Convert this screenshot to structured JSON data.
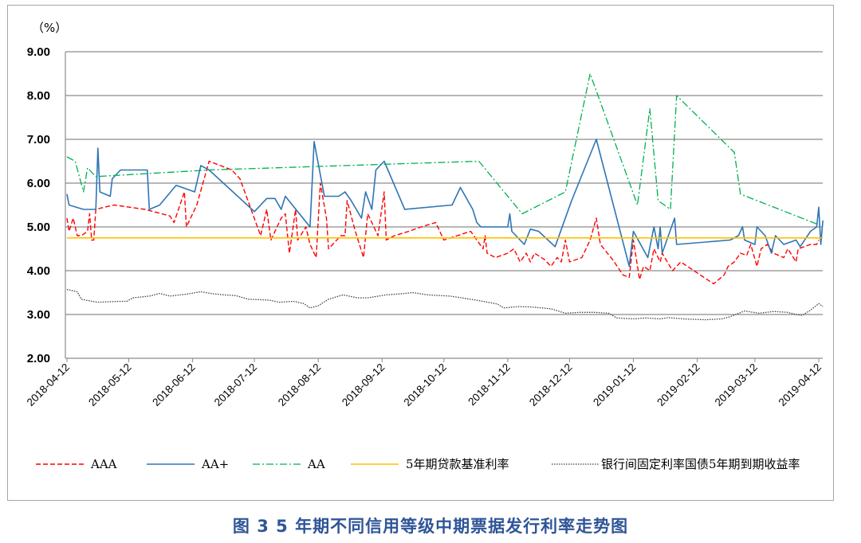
{
  "caption": "图 3  5 年期不同信用等级中期票据发行利率走势图",
  "chart_data": {
    "type": "line",
    "unit_label": "（%）",
    "ylim": [
      2.0,
      9.0
    ],
    "yticks": [
      "2.00",
      "3.00",
      "4.00",
      "5.00",
      "6.00",
      "7.00",
      "8.00",
      "9.00"
    ],
    "xticks": [
      "2018-04-12",
      "2018-05-12",
      "2018-06-12",
      "2018-07-12",
      "2018-08-12",
      "2018-09-12",
      "2018-10-12",
      "2018-11-12",
      "2018-12-12",
      "2019-01-12",
      "2019-02-12",
      "2019-03-12",
      "2019-04-12"
    ],
    "grid": "horizontal",
    "legend_position": "bottom",
    "series": [
      {
        "name": "AAA",
        "color": "#ff0000",
        "style": "dashed",
        "points": [
          [
            "2018-04-12",
            5.2
          ],
          [
            "2018-04-13",
            4.9
          ],
          [
            "2018-04-15",
            5.2
          ],
          [
            "2018-04-17",
            4.8
          ],
          [
            "2018-04-19",
            4.8
          ],
          [
            "2018-04-22",
            4.9
          ],
          [
            "2018-04-23",
            5.3
          ],
          [
            "2018-04-24",
            4.7
          ],
          [
            "2018-04-25",
            4.7
          ],
          [
            "2018-04-26",
            5.4
          ],
          [
            "2018-04-30",
            5.45
          ],
          [
            "2018-05-05",
            5.5
          ],
          [
            "2018-05-20",
            5.4
          ],
          [
            "2018-06-01",
            5.25
          ],
          [
            "2018-06-03",
            5.1
          ],
          [
            "2018-06-08",
            5.8
          ],
          [
            "2018-06-09",
            5.0
          ],
          [
            "2018-06-14",
            5.5
          ],
          [
            "2018-06-20",
            6.5
          ],
          [
            "2018-07-01",
            6.3
          ],
          [
            "2018-07-05",
            6.1
          ],
          [
            "2018-07-15",
            4.8
          ],
          [
            "2018-07-18",
            5.4
          ],
          [
            "2018-07-20",
            4.7
          ],
          [
            "2018-07-25",
            5.2
          ],
          [
            "2018-07-27",
            5.3
          ],
          [
            "2018-07-29",
            4.4
          ],
          [
            "2018-08-01",
            5.4
          ],
          [
            "2018-08-02",
            4.7
          ],
          [
            "2018-08-06",
            5.0
          ],
          [
            "2018-08-08",
            4.6
          ],
          [
            "2018-08-11",
            4.3
          ],
          [
            "2018-08-13",
            6.0
          ],
          [
            "2018-08-16",
            5.2
          ],
          [
            "2018-08-17",
            4.5
          ],
          [
            "2018-08-23",
            4.8
          ],
          [
            "2018-08-25",
            4.8
          ],
          [
            "2018-08-26",
            5.6
          ],
          [
            "2018-08-30",
            4.9
          ],
          [
            "2018-09-03",
            4.3
          ],
          [
            "2018-09-05",
            5.3
          ],
          [
            "2018-09-08",
            5.0
          ],
          [
            "2018-09-10",
            4.8
          ],
          [
            "2018-09-13",
            5.8
          ],
          [
            "2018-09-14",
            4.7
          ],
          [
            "2018-09-18",
            4.8
          ],
          [
            "2018-09-25",
            4.9
          ],
          [
            "2018-10-01",
            5.0
          ],
          [
            "2018-10-08",
            5.1
          ],
          [
            "2018-10-12",
            4.7
          ],
          [
            "2018-10-25",
            4.9
          ],
          [
            "2018-10-31",
            4.5
          ],
          [
            "2018-11-01",
            4.8
          ],
          [
            "2018-11-02",
            4.4
          ],
          [
            "2018-11-06",
            4.3
          ],
          [
            "2018-11-12",
            4.4
          ],
          [
            "2018-11-15",
            4.5
          ],
          [
            "2018-11-18",
            4.2
          ],
          [
            "2018-11-21",
            4.4
          ],
          [
            "2018-11-23",
            4.2
          ],
          [
            "2018-11-25",
            4.4
          ],
          [
            "2018-11-30",
            4.25
          ],
          [
            "2018-12-03",
            4.1
          ],
          [
            "2018-12-06",
            4.3
          ],
          [
            "2018-12-08",
            4.2
          ],
          [
            "2018-12-10",
            4.7
          ],
          [
            "2018-12-12",
            4.2
          ],
          [
            "2018-12-18",
            4.3
          ],
          [
            "2018-12-22",
            4.7
          ],
          [
            "2018-12-25",
            5.2
          ],
          [
            "2018-12-27",
            4.6
          ],
          [
            "2019-01-02",
            4.25
          ],
          [
            "2019-01-07",
            3.9
          ],
          [
            "2019-01-10",
            3.85
          ],
          [
            "2019-01-12",
            4.7
          ],
          [
            "2019-01-15",
            3.8
          ],
          [
            "2019-01-17",
            4.1
          ],
          [
            "2019-01-20",
            4.0
          ],
          [
            "2019-01-22",
            4.5
          ],
          [
            "2019-01-25",
            4.2
          ],
          [
            "2019-01-26",
            4.4
          ],
          [
            "2019-01-31",
            4.0
          ],
          [
            "2019-02-04",
            4.2
          ],
          [
            "2019-02-20",
            3.7
          ],
          [
            "2019-02-25",
            3.9
          ],
          [
            "2019-02-27",
            4.1
          ],
          [
            "2019-03-02",
            4.2
          ],
          [
            "2019-03-05",
            4.4
          ],
          [
            "2019-03-08",
            4.35
          ],
          [
            "2019-03-10",
            4.6
          ],
          [
            "2019-03-13",
            4.1
          ],
          [
            "2019-03-15",
            4.5
          ],
          [
            "2019-03-18",
            4.6
          ],
          [
            "2019-03-21",
            4.4
          ],
          [
            "2019-03-26",
            4.3
          ],
          [
            "2019-03-28",
            4.5
          ],
          [
            "2019-04-01",
            4.2
          ],
          [
            "2019-04-02",
            4.5
          ],
          [
            "2019-04-08",
            4.6
          ],
          [
            "2019-04-11",
            4.6
          ],
          [
            "2019-04-12",
            4.7
          ]
        ]
      },
      {
        "name": "AA+",
        "color": "#2e75b6",
        "style": "solid",
        "points": [
          [
            "2018-04-12",
            5.75
          ],
          [
            "2018-04-13",
            5.5
          ],
          [
            "2018-04-20",
            5.4
          ],
          [
            "2018-04-26",
            5.4
          ],
          [
            "2018-04-27",
            6.8
          ],
          [
            "2018-04-28",
            5.8
          ],
          [
            "2018-05-03",
            5.7
          ],
          [
            "2018-05-04",
            6.1
          ],
          [
            "2018-05-08",
            6.3
          ],
          [
            "2018-05-17",
            6.3
          ],
          [
            "2018-05-21",
            6.3
          ],
          [
            "2018-05-22",
            5.4
          ],
          [
            "2018-05-27",
            5.5
          ],
          [
            "2018-06-04",
            5.95
          ],
          [
            "2018-06-13",
            5.8
          ],
          [
            "2018-06-16",
            6.4
          ],
          [
            "2018-06-20",
            6.3
          ],
          [
            "2018-07-12",
            5.35
          ],
          [
            "2018-07-18",
            5.65
          ],
          [
            "2018-07-22",
            5.65
          ],
          [
            "2018-07-25",
            5.4
          ],
          [
            "2018-07-27",
            5.7
          ],
          [
            "2018-08-08",
            5.0
          ],
          [
            "2018-08-10",
            6.95
          ],
          [
            "2018-08-15",
            5.7
          ],
          [
            "2018-08-22",
            5.7
          ],
          [
            "2018-08-25",
            5.8
          ],
          [
            "2018-08-28",
            5.6
          ],
          [
            "2018-09-02",
            5.2
          ],
          [
            "2018-09-04",
            5.8
          ],
          [
            "2018-09-07",
            5.4
          ],
          [
            "2018-09-09",
            6.3
          ],
          [
            "2018-09-13",
            6.5
          ],
          [
            "2018-09-23",
            5.4
          ],
          [
            "2018-10-16",
            5.5
          ],
          [
            "2018-10-20",
            5.9
          ],
          [
            "2018-10-26",
            5.4
          ],
          [
            "2018-10-28",
            5.1
          ],
          [
            "2018-10-30",
            5.0
          ],
          [
            "2018-11-12",
            5.0
          ],
          [
            "2018-11-13",
            5.3
          ],
          [
            "2018-11-14",
            4.9
          ],
          [
            "2018-11-20",
            4.6
          ],
          [
            "2018-11-23",
            4.95
          ],
          [
            "2018-11-27",
            4.9
          ],
          [
            "2018-12-05",
            4.55
          ],
          [
            "2018-12-13",
            5.6
          ],
          [
            "2018-12-25",
            7.0
          ],
          [
            "2019-01-10",
            4.1
          ],
          [
            "2019-01-12",
            4.9
          ],
          [
            "2019-01-19",
            4.3
          ],
          [
            "2019-01-22",
            5.0
          ],
          [
            "2019-01-24",
            4.5
          ],
          [
            "2019-01-25",
            5.0
          ],
          [
            "2019-01-26",
            4.4
          ],
          [
            "2019-02-01",
            5.2
          ],
          [
            "2019-02-02",
            4.6
          ],
          [
            "2019-02-28",
            4.7
          ],
          [
            "2019-03-04",
            4.8
          ],
          [
            "2019-03-06",
            5.0
          ],
          [
            "2019-03-07",
            4.7
          ],
          [
            "2019-03-12",
            4.6
          ],
          [
            "2019-03-13",
            5.0
          ],
          [
            "2019-03-17",
            4.8
          ],
          [
            "2019-03-20",
            4.4
          ],
          [
            "2019-03-22",
            4.8
          ],
          [
            "2019-03-26",
            4.6
          ],
          [
            "2019-04-01",
            4.7
          ],
          [
            "2019-04-03",
            4.55
          ],
          [
            "2019-04-08",
            4.9
          ],
          [
            "2019-04-11",
            5.0
          ],
          [
            "2019-04-12",
            5.45
          ],
          [
            "2019-04-13",
            4.6
          ],
          [
            "2019-04-14",
            5.15
          ]
        ]
      },
      {
        "name": "AA",
        "color": "#00b050",
        "style": "dashdot",
        "points": [
          [
            "2018-04-12",
            6.6
          ],
          [
            "2018-04-16",
            6.5
          ],
          [
            "2018-04-20",
            5.8
          ],
          [
            "2018-04-22",
            6.35
          ],
          [
            "2018-04-26",
            6.15
          ],
          [
            "2018-06-20",
            6.3
          ],
          [
            "2018-10-29",
            6.5
          ],
          [
            "2018-11-19",
            5.3
          ],
          [
            "2018-12-10",
            5.8
          ],
          [
            "2018-12-22",
            8.5
          ],
          [
            "2019-01-14",
            5.5
          ],
          [
            "2019-01-20",
            7.7
          ],
          [
            "2019-01-24",
            5.6
          ],
          [
            "2019-01-30",
            5.4
          ],
          [
            "2019-02-02",
            8.0
          ],
          [
            "2019-03-02",
            6.7
          ],
          [
            "2019-03-05",
            5.75
          ],
          [
            "2019-04-12",
            5.05
          ]
        ]
      },
      {
        "name": "5年期贷款基准利率",
        "color": "#ffc000",
        "style": "solid",
        "points": [
          [
            "2018-04-12",
            4.75
          ],
          [
            "2019-04-14",
            4.75
          ]
        ]
      },
      {
        "name": "银行间固定利率国债5年期到期收益率",
        "color": "#404040",
        "style": "dotted",
        "points": [
          [
            "2018-04-12",
            3.57
          ],
          [
            "2018-04-17",
            3.52
          ],
          [
            "2018-04-19",
            3.35
          ],
          [
            "2018-04-22",
            3.32
          ],
          [
            "2018-04-27",
            3.28
          ],
          [
            "2018-05-07",
            3.3
          ],
          [
            "2018-05-11",
            3.3
          ],
          [
            "2018-05-14",
            3.38
          ],
          [
            "2018-05-22",
            3.42
          ],
          [
            "2018-05-27",
            3.48
          ],
          [
            "2018-06-01",
            3.42
          ],
          [
            "2018-06-10",
            3.47
          ],
          [
            "2018-06-16",
            3.52
          ],
          [
            "2018-06-21",
            3.48
          ],
          [
            "2018-06-27",
            3.45
          ],
          [
            "2018-07-03",
            3.43
          ],
          [
            "2018-07-09",
            3.35
          ],
          [
            "2018-07-19",
            3.33
          ],
          [
            "2018-07-24",
            3.28
          ],
          [
            "2018-07-31",
            3.3
          ],
          [
            "2018-08-05",
            3.25
          ],
          [
            "2018-08-08",
            3.15
          ],
          [
            "2018-08-12",
            3.2
          ],
          [
            "2018-08-17",
            3.35
          ],
          [
            "2018-08-24",
            3.45
          ],
          [
            "2018-08-31",
            3.38
          ],
          [
            "2018-09-05",
            3.38
          ],
          [
            "2018-09-14",
            3.45
          ],
          [
            "2018-09-21",
            3.47
          ],
          [
            "2018-09-27",
            3.5
          ],
          [
            "2018-10-04",
            3.45
          ],
          [
            "2018-10-15",
            3.42
          ],
          [
            "2018-10-22",
            3.37
          ],
          [
            "2018-10-31",
            3.3
          ],
          [
            "2018-11-07",
            3.24
          ],
          [
            "2018-11-10",
            3.15
          ],
          [
            "2018-11-17",
            3.18
          ],
          [
            "2018-11-24",
            3.17
          ],
          [
            "2018-12-03",
            3.13
          ],
          [
            "2018-12-10",
            3.03
          ],
          [
            "2018-12-17",
            3.05
          ],
          [
            "2018-12-24",
            3.05
          ],
          [
            "2018-12-31",
            3.03
          ],
          [
            "2019-01-04",
            2.92
          ],
          [
            "2019-01-12",
            2.9
          ],
          [
            "2019-01-18",
            2.92
          ],
          [
            "2019-01-25",
            2.9
          ],
          [
            "2019-01-29",
            2.93
          ],
          [
            "2019-02-05",
            2.9
          ],
          [
            "2019-02-16",
            2.88
          ],
          [
            "2019-02-24",
            2.9
          ],
          [
            "2019-02-28",
            2.95
          ],
          [
            "2019-03-07",
            3.08
          ],
          [
            "2019-03-14",
            3.03
          ],
          [
            "2019-03-21",
            3.07
          ],
          [
            "2019-03-28",
            3.05
          ],
          [
            "2019-04-01",
            3.0
          ],
          [
            "2019-04-04",
            2.98
          ],
          [
            "2019-04-08",
            3.1
          ],
          [
            "2019-04-12",
            3.25
          ],
          [
            "2019-04-14",
            3.18
          ]
        ]
      }
    ]
  }
}
